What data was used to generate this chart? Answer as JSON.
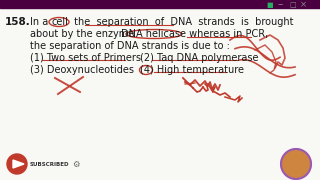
{
  "bg_color": "#f8f8f5",
  "text_color": "#1a1a1a",
  "red_color": "#c0392b",
  "purple_top": "#4a0040",
  "font_size": 7.0,
  "q_font_size": 7.5,
  "q_num": "158.",
  "lines": [
    "In a  cell  the  separation  of  DNA  strands  is  brought",
    "about by the enzyme DNA helicase  whereas in PCR,",
    "the separation of DNA strands is due to :",
    "(1) Two sets of Primers     (2) Taq DNA polymerase",
    "(3) Deoxynucleotides         (4) High temperature"
  ]
}
